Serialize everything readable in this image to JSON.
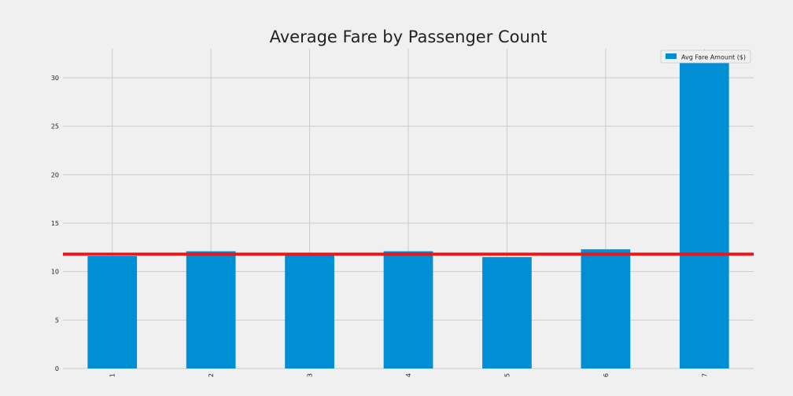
{
  "chart_data": {
    "type": "bar",
    "title": "Average Fare by Passenger Count",
    "xlabel": "",
    "ylabel": "",
    "categories": [
      "1",
      "2",
      "3",
      "4",
      "5",
      "6",
      "7"
    ],
    "series": [
      {
        "name": "Avg Fare Amount ($)",
        "values": [
          11.6,
          12.1,
          11.9,
          12.1,
          11.5,
          12.3,
          31.6
        ],
        "color": "#008fd5"
      }
    ],
    "reference_line": {
      "value": 11.8,
      "color": "#e5191c"
    },
    "ylim": [
      0,
      33
    ],
    "yticks": [
      0,
      5,
      10,
      15,
      20,
      25,
      30
    ],
    "grid": true,
    "legend_position": "top-right",
    "x_tick_rotation": "vertical",
    "colors": {
      "background": "#f0f0f0",
      "grid": "#cbcbcb",
      "text": "#222222"
    }
  }
}
